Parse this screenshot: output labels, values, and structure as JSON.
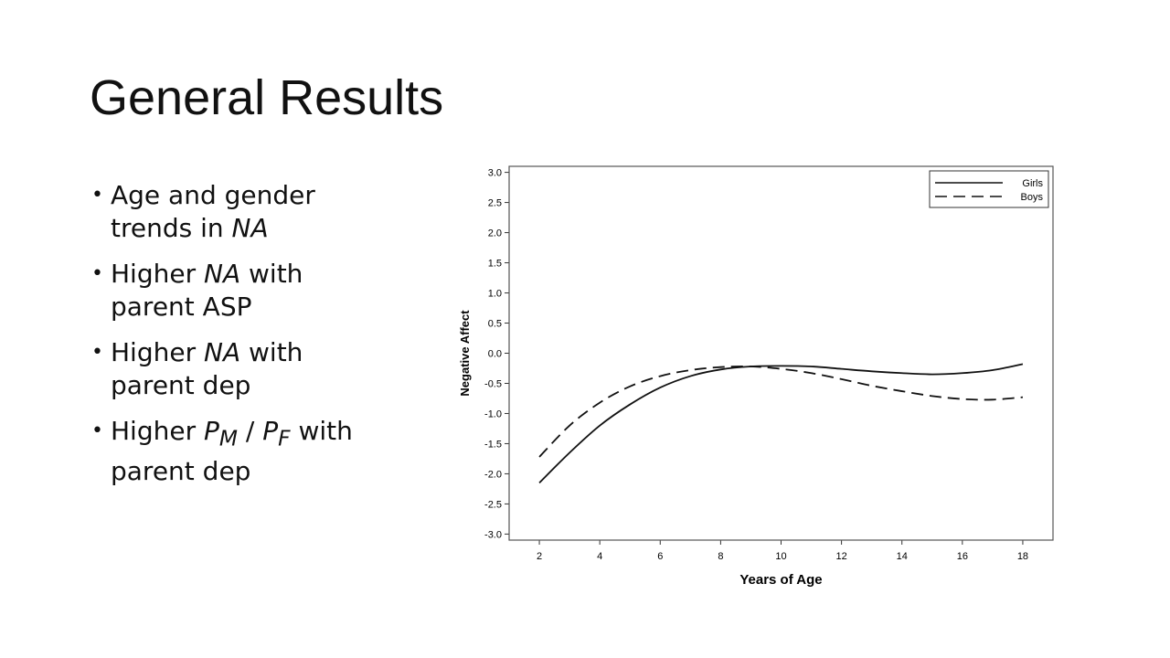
{
  "slide": {
    "title": "General Results",
    "bullets": [
      {
        "pre": "Age and gender trends in ",
        "em": "NA",
        "post": ""
      },
      {
        "pre": "Higher ",
        "em": "NA",
        "post": " with parent ASP"
      },
      {
        "pre": "Higher ",
        "em": "NA",
        "post": " with parent dep"
      },
      {
        "pre": "Higher ",
        "p1": "P",
        "s1": "M",
        "sep": " / ",
        "p2": "P",
        "s2": "F",
        "post": " with parent dep"
      }
    ]
  },
  "chart_data": {
    "type": "line",
    "xlabel": "Years of Age",
    "ylabel": "Negative Affect",
    "xlim": [
      1,
      19
    ],
    "ylim": [
      -3.1,
      3.1
    ],
    "xticks": [
      2,
      4,
      6,
      8,
      10,
      12,
      14,
      16,
      18
    ],
    "yticks": [
      3.0,
      2.5,
      2.0,
      1.5,
      1.0,
      0.5,
      0.0,
      -0.5,
      -1.0,
      -1.5,
      -2.0,
      -2.5,
      -3.0
    ],
    "ytick_labels": [
      "3.0",
      "2.5",
      "2.0",
      "1.5",
      "1.0",
      "0.5",
      "0.0",
      "-0.5",
      "-1.0",
      "-1.5",
      "-2.0",
      "-2.5",
      "-3.0"
    ],
    "legend_position": "top-right",
    "series": [
      {
        "name": "Girls",
        "style": "solid",
        "x": [
          2,
          3,
          4,
          5,
          6,
          7,
          8,
          9,
          10,
          11,
          12,
          13,
          14,
          15,
          16,
          17,
          18
        ],
        "y": [
          -2.15,
          -1.65,
          -1.2,
          -0.85,
          -0.57,
          -0.38,
          -0.27,
          -0.22,
          -0.21,
          -0.22,
          -0.26,
          -0.3,
          -0.33,
          -0.35,
          -0.33,
          -0.28,
          -0.18
        ]
      },
      {
        "name": "Boys",
        "style": "dashed",
        "x": [
          2,
          3,
          4,
          5,
          6,
          7,
          8,
          9,
          10,
          11,
          12,
          13,
          14,
          15,
          16,
          17,
          18
        ],
        "y": [
          -1.72,
          -1.2,
          -0.82,
          -0.55,
          -0.38,
          -0.28,
          -0.23,
          -0.22,
          -0.26,
          -0.33,
          -0.43,
          -0.54,
          -0.63,
          -0.71,
          -0.76,
          -0.77,
          -0.73
        ]
      }
    ]
  }
}
